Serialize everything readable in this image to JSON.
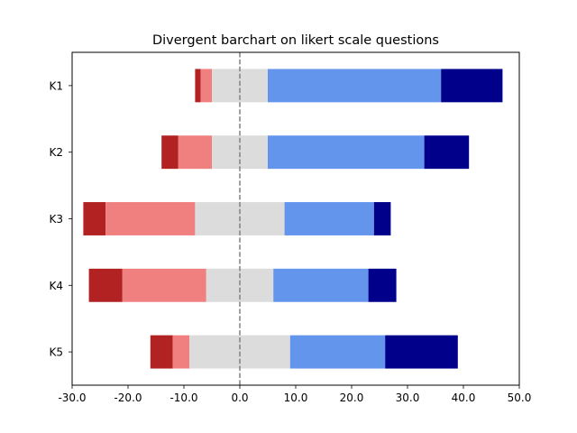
{
  "chart_data": {
    "type": "bar",
    "orientation": "horizontal",
    "stacked": "diverging",
    "title": "Divergent barchart on likert scale questions",
    "xlabel": "",
    "ylabel": "",
    "xlim": [
      -30,
      50
    ],
    "x_ticks": [
      "-30.0",
      "-20.0",
      "-10.0",
      "0.0",
      "10.0",
      "20.0",
      "30.0",
      "40.0",
      "50.0"
    ],
    "x_tick_values": [
      -30,
      -20,
      -10,
      0,
      10,
      20,
      30,
      40,
      50
    ],
    "categories": [
      "K1",
      "K2",
      "K3",
      "K4",
      "K5"
    ],
    "center_line": {
      "x": 0,
      "style": "dashed",
      "color": "#808080"
    },
    "grid": false,
    "legend": "none",
    "segments": [
      {
        "color": "#b22222",
        "values": [
          1,
          3,
          4,
          6,
          4
        ]
      },
      {
        "color": "#f08080",
        "values": [
          2,
          6,
          16,
          15,
          3
        ]
      },
      {
        "color": "#dcdcdc",
        "values": [
          10,
          10,
          16,
          12,
          18
        ]
      },
      {
        "color": "#6495ed",
        "values": [
          31,
          28,
          16,
          17,
          17
        ]
      },
      {
        "color": "#00008b",
        "values": [
          11,
          8,
          3,
          5,
          13
        ]
      }
    ],
    "bar_ranges": [
      {
        "category": "K1",
        "start": -8,
        "end": 47
      },
      {
        "category": "K2",
        "start": -14,
        "end": 41
      },
      {
        "category": "K3",
        "start": -28,
        "end": 27
      },
      {
        "category": "K4",
        "start": -27,
        "end": 28
      },
      {
        "category": "K5",
        "start": -16,
        "end": 39
      }
    ]
  }
}
